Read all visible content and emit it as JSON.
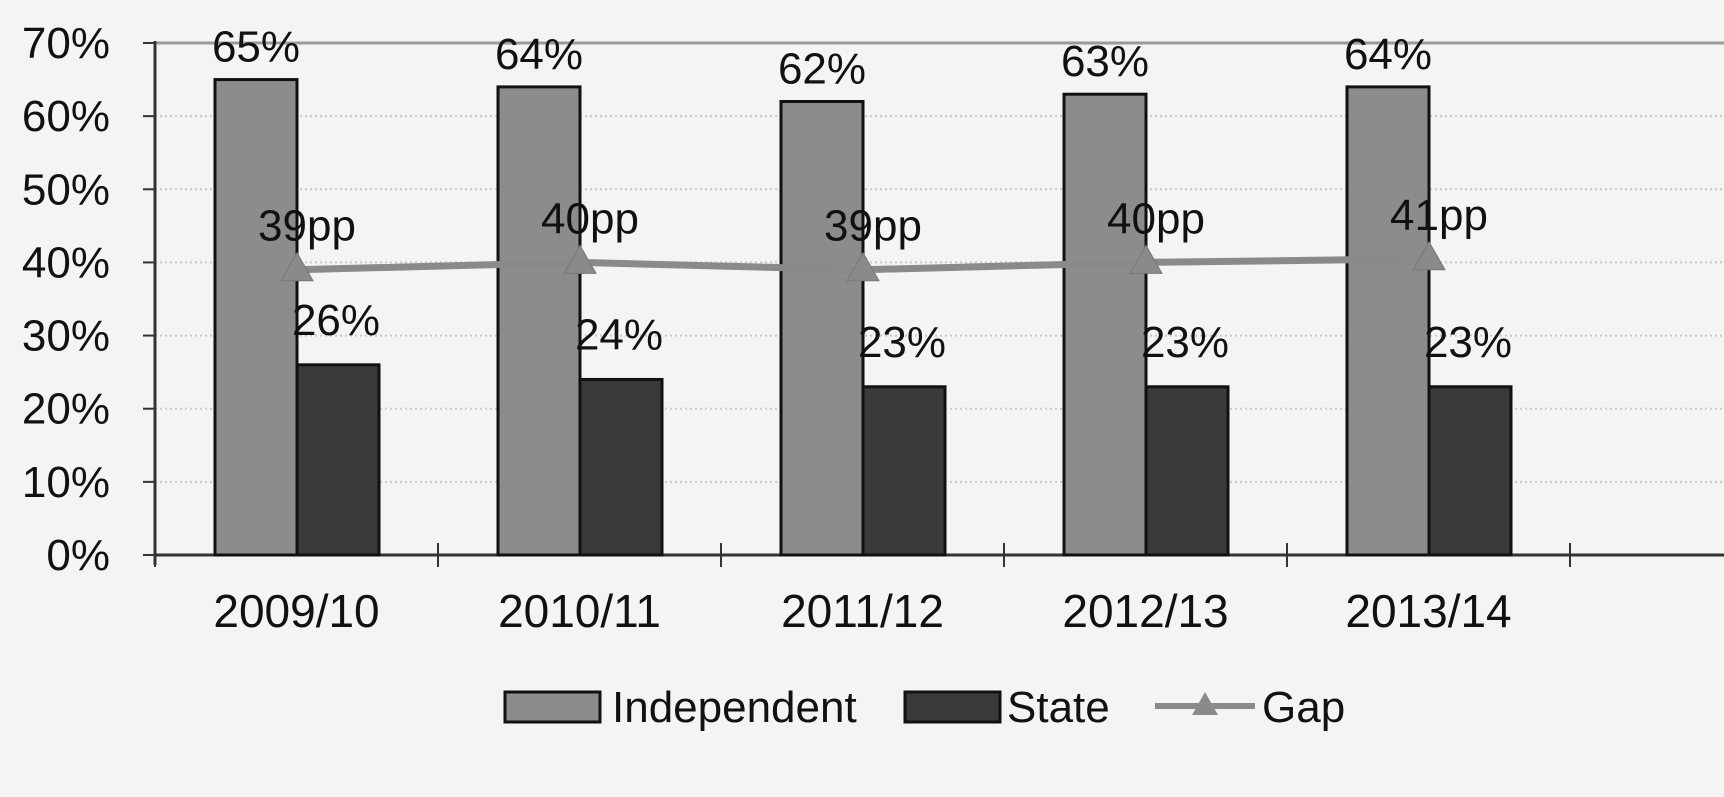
{
  "chart_data": {
    "type": "bar",
    "categories": [
      "2009/10",
      "2010/11",
      "2011/12",
      "2012/13",
      "2013/14"
    ],
    "series": [
      {
        "name": "Independent",
        "values": [
          65,
          64,
          62,
          63,
          64
        ],
        "labels": [
          "65%",
          "64%",
          "62%",
          "63%",
          "64%"
        ],
        "color": "#8c8c8c"
      },
      {
        "name": "State",
        "values": [
          26,
          24,
          23,
          23,
          23
        ],
        "labels": [
          "26%",
          "24%",
          "23%",
          "23%",
          "23%"
        ],
        "color": "#3a3a3a"
      }
    ],
    "line_series": {
      "name": "Gap",
      "type": "line",
      "marker": "triangle",
      "values": [
        39,
        40,
        39,
        40,
        41
      ],
      "plot_values": [
        39,
        40,
        39,
        40,
        40.5
      ],
      "labels": [
        "39pp",
        "40pp",
        "39pp",
        "40pp",
        "41pp"
      ],
      "color": "#8a8a8a"
    },
    "title": "",
    "xlabel": "",
    "ylabel": "",
    "ylim": [
      0,
      70
    ],
    "yticks": [
      "0%",
      "10%",
      "20%",
      "30%",
      "40%",
      "50%",
      "60%",
      "70%"
    ],
    "grid": true,
    "legend": "bottom"
  }
}
